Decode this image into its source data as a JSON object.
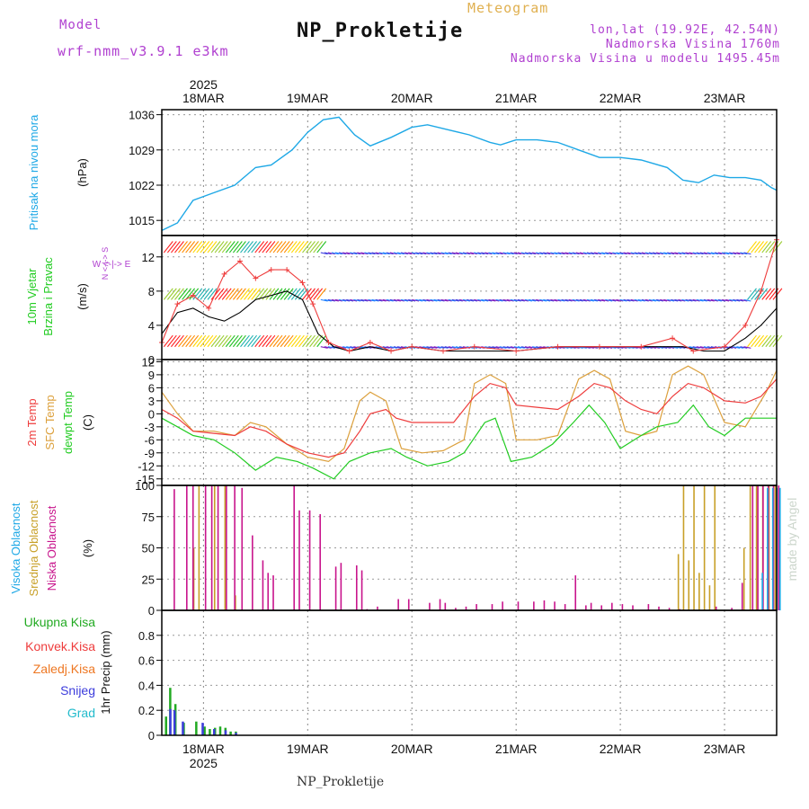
{
  "header": {
    "model_label": "Model",
    "model_name": "wrf-nmm_v3.9.1 e3km",
    "title": "NP_Prokletije",
    "meteogram": "Meteogram",
    "lonlat": "lon,lat (19.92E, 42.54N)",
    "elevation": "Nadmorska Visina 1760m",
    "model_elevation": "Nadmorska Visina u modelu 1495.45m",
    "footer": "NP_Prokletije",
    "watermark": "made by Angel",
    "year_top": "2025",
    "year_bottom": "2025"
  },
  "colors": {
    "pressure": "#1ea8e6",
    "temp2m": "#ee3c3c",
    "sfc": "#dca03c",
    "dew": "#22cc22",
    "high": "#1ea8e6",
    "mid": "#c8a028",
    "low": "#c8148c",
    "label_purple": "#b040d0",
    "total": "#22aa22",
    "conv": "#ee3c3c",
    "frozen": "#ee7722",
    "snow": "#3c3cdc",
    "grad": "#22bbcc"
  },
  "chart_data": {
    "type": "meteogram",
    "time_axis": {
      "start_day": 17.6,
      "end_day": 23.5,
      "day_labels": [
        "18MAR",
        "19MAR",
        "20MAR",
        "21MAR",
        "22MAR",
        "23MAR"
      ],
      "day_values": [
        18,
        19,
        20,
        21,
        22,
        23
      ]
    },
    "pressure": {
      "ylabel": "Pritisak na nivou mora",
      "unit": "(hPa)",
      "ylim": [
        1012,
        1037
      ],
      "yticks": [
        1015,
        1022,
        1029,
        1036
      ],
      "points": [
        [
          17.6,
          1013
        ],
        [
          17.75,
          1014.5
        ],
        [
          17.9,
          1019
        ],
        [
          18.1,
          1020.5
        ],
        [
          18.3,
          1022
        ],
        [
          18.5,
          1025.5
        ],
        [
          18.65,
          1026
        ],
        [
          18.85,
          1029
        ],
        [
          19.0,
          1032.5
        ],
        [
          19.15,
          1035
        ],
        [
          19.3,
          1035.5
        ],
        [
          19.45,
          1032
        ],
        [
          19.6,
          1029.8
        ],
        [
          19.8,
          1031.5
        ],
        [
          20.0,
          1033.5
        ],
        [
          20.15,
          1034
        ],
        [
          20.35,
          1033
        ],
        [
          20.55,
          1032
        ],
        [
          20.75,
          1030.5
        ],
        [
          20.85,
          1030
        ],
        [
          21.0,
          1031
        ],
        [
          21.2,
          1031
        ],
        [
          21.4,
          1030.5
        ],
        [
          21.6,
          1029
        ],
        [
          21.8,
          1027.5
        ],
        [
          22.0,
          1027.5
        ],
        [
          22.2,
          1027
        ],
        [
          22.45,
          1025.5
        ],
        [
          22.6,
          1023
        ],
        [
          22.75,
          1022.5
        ],
        [
          22.9,
          1024
        ],
        [
          23.05,
          1023.5
        ],
        [
          23.2,
          1023.5
        ],
        [
          23.35,
          1023
        ],
        [
          23.45,
          1021.5
        ],
        [
          23.5,
          1021
        ]
      ]
    },
    "wind": {
      "ylabel": "10m Vjetar",
      "ylabel2": "Brzina i Pravac",
      "unit": "(m/s)",
      "compass": "W <-|-> E",
      "compass_north": "N <-|-> S",
      "ylim": [
        0,
        14.5
      ],
      "yticks": [
        0,
        4,
        8,
        12
      ],
      "speed": [
        [
          17.6,
          3
        ],
        [
          17.75,
          5.5
        ],
        [
          17.9,
          6
        ],
        [
          18.05,
          5
        ],
        [
          18.2,
          4.5
        ],
        [
          18.35,
          5.5
        ],
        [
          18.5,
          7
        ],
        [
          18.65,
          7.5
        ],
        [
          18.8,
          8
        ],
        [
          18.95,
          7
        ],
        [
          19.1,
          3
        ],
        [
          19.25,
          1.5
        ],
        [
          19.4,
          1
        ],
        [
          19.6,
          1.5
        ],
        [
          19.8,
          1
        ],
        [
          20.0,
          1.5
        ],
        [
          20.3,
          1
        ],
        [
          20.6,
          1
        ],
        [
          21.0,
          1
        ],
        [
          21.4,
          1.5
        ],
        [
          21.8,
          1.5
        ],
        [
          22.2,
          1.5
        ],
        [
          22.6,
          1.5
        ],
        [
          22.8,
          1
        ],
        [
          23.0,
          1
        ],
        [
          23.2,
          2.5
        ],
        [
          23.35,
          4
        ],
        [
          23.5,
          6
        ]
      ],
      "gust": [
        [
          17.6,
          2
        ],
        [
          17.75,
          6.5
        ],
        [
          17.9,
          7.5
        ],
        [
          18.05,
          6
        ],
        [
          18.2,
          10
        ],
        [
          18.35,
          11.5
        ],
        [
          18.5,
          9.5
        ],
        [
          18.65,
          10.5
        ],
        [
          18.8,
          10.5
        ],
        [
          18.95,
          9
        ],
        [
          19.05,
          6.5
        ],
        [
          19.2,
          2
        ],
        [
          19.4,
          1
        ],
        [
          19.6,
          2
        ],
        [
          19.8,
          1
        ],
        [
          20.0,
          1.5
        ],
        [
          20.3,
          1
        ],
        [
          20.6,
          1.5
        ],
        [
          21.0,
          1
        ],
        [
          21.4,
          1.5
        ],
        [
          21.8,
          1.5
        ],
        [
          22.2,
          1.5
        ],
        [
          22.5,
          2.5
        ],
        [
          22.7,
          1
        ],
        [
          23.0,
          1.5
        ],
        [
          23.2,
          4
        ],
        [
          23.35,
          8
        ],
        [
          23.5,
          14
        ]
      ]
    },
    "temperature": {
      "labels": [
        "2m Temp",
        "SFC Temp",
        "dewpt Temp"
      ],
      "unit": "(C)",
      "ylim": [
        -16.5,
        12.5
      ],
      "yticks": [
        -15,
        -12,
        -9,
        -6,
        -3,
        0,
        3,
        6,
        9,
        12
      ],
      "t2m": [
        [
          17.6,
          1
        ],
        [
          17.75,
          -1
        ],
        [
          17.9,
          -4
        ],
        [
          18.1,
          -4.5
        ],
        [
          18.3,
          -5
        ],
        [
          18.45,
          -3
        ],
        [
          18.6,
          -4
        ],
        [
          18.8,
          -7
        ],
        [
          19.0,
          -9
        ],
        [
          19.2,
          -10
        ],
        [
          19.35,
          -9
        ],
        [
          19.5,
          -4
        ],
        [
          19.6,
          0
        ],
        [
          19.75,
          1
        ],
        [
          19.85,
          -1
        ],
        [
          20.0,
          -2
        ],
        [
          20.2,
          -2
        ],
        [
          20.4,
          -2
        ],
        [
          20.6,
          4
        ],
        [
          20.75,
          7
        ],
        [
          20.9,
          6
        ],
        [
          21.0,
          2
        ],
        [
          21.2,
          1.5
        ],
        [
          21.4,
          1
        ],
        [
          21.6,
          4
        ],
        [
          21.75,
          7
        ],
        [
          21.9,
          6
        ],
        [
          22.05,
          3
        ],
        [
          22.2,
          1
        ],
        [
          22.35,
          0
        ],
        [
          22.5,
          4
        ],
        [
          22.65,
          7
        ],
        [
          22.8,
          6
        ],
        [
          23.0,
          3
        ],
        [
          23.2,
          2.5
        ],
        [
          23.35,
          4
        ],
        [
          23.5,
          8
        ]
      ],
      "sfc": [
        [
          17.6,
          5
        ],
        [
          17.75,
          0
        ],
        [
          17.9,
          -4
        ],
        [
          18.1,
          -4
        ],
        [
          18.3,
          -5
        ],
        [
          18.45,
          -2
        ],
        [
          18.6,
          -3
        ],
        [
          18.8,
          -7
        ],
        [
          19.0,
          -10
        ],
        [
          19.2,
          -11
        ],
        [
          19.35,
          -8
        ],
        [
          19.5,
          3
        ],
        [
          19.6,
          5
        ],
        [
          19.75,
          3
        ],
        [
          19.9,
          -8
        ],
        [
          20.1,
          -9
        ],
        [
          20.3,
          -8.5
        ],
        [
          20.5,
          -6
        ],
        [
          20.6,
          7
        ],
        [
          20.75,
          9
        ],
        [
          20.9,
          7
        ],
        [
          21.0,
          -6
        ],
        [
          21.2,
          -6
        ],
        [
          21.4,
          -5
        ],
        [
          21.6,
          8
        ],
        [
          21.75,
          10
        ],
        [
          21.9,
          8
        ],
        [
          22.05,
          -4
        ],
        [
          22.2,
          -5
        ],
        [
          22.35,
          -4
        ],
        [
          22.5,
          9
        ],
        [
          22.65,
          11
        ],
        [
          22.8,
          9
        ],
        [
          23.0,
          -2
        ],
        [
          23.2,
          -3
        ],
        [
          23.4,
          5
        ],
        [
          23.5,
          10
        ]
      ],
      "dew": [
        [
          17.6,
          -1
        ],
        [
          17.75,
          -3
        ],
        [
          17.9,
          -5
        ],
        [
          18.1,
          -6
        ],
        [
          18.3,
          -9
        ],
        [
          18.5,
          -13
        ],
        [
          18.7,
          -10
        ],
        [
          18.9,
          -11
        ],
        [
          19.05,
          -12.5
        ],
        [
          19.25,
          -15
        ],
        [
          19.4,
          -11
        ],
        [
          19.6,
          -9
        ],
        [
          19.8,
          -8
        ],
        [
          19.95,
          -10
        ],
        [
          20.15,
          -12
        ],
        [
          20.35,
          -11
        ],
        [
          20.5,
          -9
        ],
        [
          20.7,
          -2
        ],
        [
          20.8,
          -1
        ],
        [
          20.95,
          -11
        ],
        [
          21.15,
          -10
        ],
        [
          21.35,
          -7
        ],
        [
          21.55,
          -2
        ],
        [
          21.7,
          2
        ],
        [
          21.85,
          -2
        ],
        [
          22.0,
          -8
        ],
        [
          22.2,
          -5
        ],
        [
          22.35,
          -3
        ],
        [
          22.55,
          -2
        ],
        [
          22.7,
          2
        ],
        [
          22.85,
          -3
        ],
        [
          23.0,
          -5
        ],
        [
          23.2,
          -1
        ],
        [
          23.35,
          -1
        ],
        [
          23.5,
          -1
        ]
      ]
    },
    "clouds": {
      "labels": [
        "Visoka Oblacnost",
        "Srednja Oblacnost",
        "Niska Oblacnost"
      ],
      "unit": "(%)",
      "ylim": [
        0,
        100
      ],
      "yticks": [
        0,
        25,
        50,
        75,
        100
      ],
      "low": [
        [
          17.7,
          97
        ],
        [
          17.82,
          100
        ],
        [
          17.88,
          100
        ],
        [
          18.0,
          100
        ],
        [
          18.06,
          100
        ],
        [
          18.12,
          100
        ],
        [
          18.2,
          100
        ],
        [
          18.28,
          100
        ],
        [
          18.35,
          98
        ],
        [
          18.45,
          60
        ],
        [
          18.55,
          40
        ],
        [
          18.6,
          30
        ],
        [
          18.65,
          28
        ],
        [
          18.85,
          100
        ],
        [
          18.9,
          80
        ],
        [
          19.0,
          80
        ],
        [
          19.1,
          77
        ],
        [
          19.25,
          35
        ],
        [
          19.3,
          38
        ],
        [
          19.45,
          36
        ],
        [
          19.5,
          32
        ],
        [
          19.55,
          1
        ],
        [
          19.65,
          3
        ],
        [
          19.85,
          9
        ],
        [
          19.95,
          9
        ],
        [
          20.15,
          6
        ],
        [
          20.25,
          9
        ],
        [
          20.3,
          6
        ],
        [
          20.4,
          2
        ],
        [
          20.5,
          3
        ],
        [
          20.6,
          5
        ],
        [
          20.75,
          5
        ],
        [
          20.85,
          7
        ],
        [
          21.0,
          7
        ],
        [
          21.15,
          7
        ],
        [
          21.25,
          8
        ],
        [
          21.35,
          7
        ],
        [
          21.45,
          5
        ],
        [
          21.55,
          28
        ],
        [
          21.65,
          4
        ],
        [
          21.7,
          6
        ],
        [
          21.8,
          4
        ],
        [
          21.9,
          6
        ],
        [
          22.0,
          5
        ],
        [
          22.1,
          4
        ],
        [
          22.25,
          5
        ],
        [
          22.35,
          3
        ],
        [
          22.45,
          2
        ],
        [
          22.55,
          1
        ],
        [
          22.9,
          3
        ],
        [
          23.05,
          2
        ],
        [
          23.15,
          22
        ],
        [
          23.25,
          100
        ],
        [
          23.3,
          100
        ],
        [
          23.35,
          100
        ],
        [
          23.4,
          100
        ],
        [
          23.45,
          100
        ],
        [
          23.5,
          100
        ]
      ],
      "mid": [
        [
          17.9,
          50
        ],
        [
          17.95,
          100
        ],
        [
          18.1,
          100
        ],
        [
          18.2,
          100
        ],
        [
          18.3,
          12
        ],
        [
          22.55,
          45
        ],
        [
          22.6,
          100
        ],
        [
          22.65,
          40
        ],
        [
          22.7,
          100
        ],
        [
          22.75,
          30
        ],
        [
          22.8,
          100
        ],
        [
          22.85,
          20
        ],
        [
          22.9,
          100
        ],
        [
          23.18,
          50
        ],
        [
          23.24,
          100
        ],
        [
          23.3,
          100
        ],
        [
          23.36,
          100
        ],
        [
          23.42,
          100
        ],
        [
          23.48,
          100
        ]
      ],
      "high": [
        [
          23.33,
          30
        ],
        [
          23.38,
          98
        ],
        [
          23.43,
          98
        ],
        [
          23.47,
          98
        ],
        [
          23.5,
          98
        ]
      ]
    },
    "precip": {
      "labels": [
        "Ukupna Kisa",
        "Konvek.Kisa",
        "Zaledj.Kisa",
        "Snijeg",
        "Grad"
      ],
      "ylabel": "1hr Precip (mm)",
      "ylim": [
        0,
        1.0
      ],
      "yticks": [
        0,
        0.2,
        0.4,
        0.6,
        0.8
      ],
      "total": [
        [
          17.63,
          0.15
        ],
        [
          17.67,
          0.38
        ],
        [
          17.72,
          0.25
        ],
        [
          17.8,
          0.1
        ],
        [
          17.92,
          0.11
        ],
        [
          18.0,
          0.07
        ],
        [
          18.05,
          0.05
        ],
        [
          18.1,
          0.06
        ],
        [
          18.15,
          0.07
        ],
        [
          18.2,
          0.06
        ],
        [
          18.25,
          0.03
        ],
        [
          18.3,
          0.03
        ]
      ],
      "snow": [
        [
          17.65,
          0.21
        ],
        [
          17.69,
          0.2
        ],
        [
          17.77,
          0.11
        ],
        [
          17.96,
          0.1
        ],
        [
          18.07,
          0.05
        ],
        [
          18.18,
          0.04
        ],
        [
          18.28,
          0.02
        ]
      ]
    }
  }
}
